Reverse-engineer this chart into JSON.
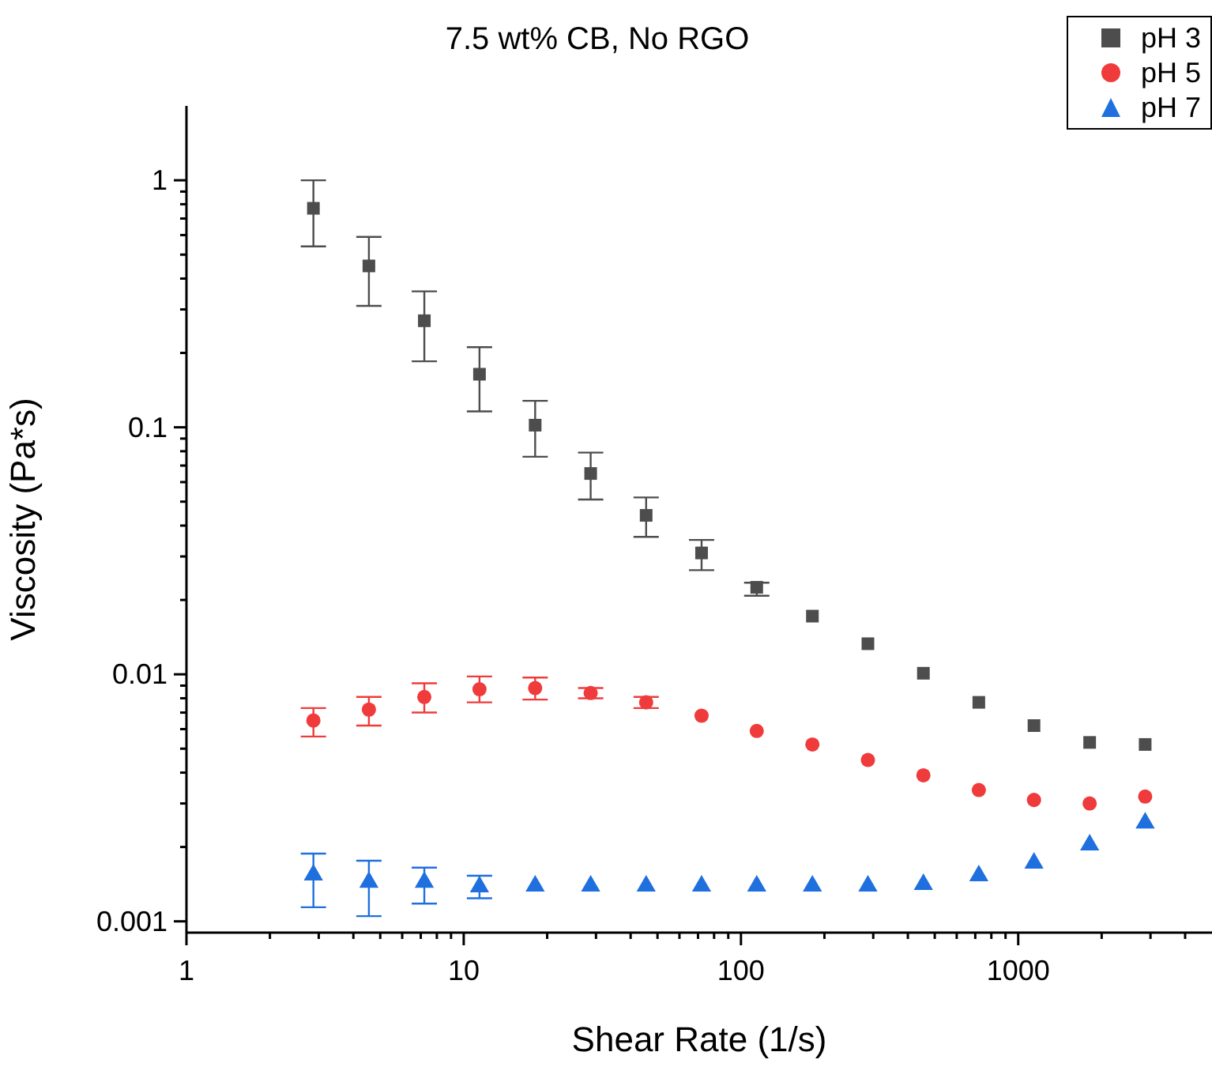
{
  "chart_data": {
    "type": "scatter",
    "title": "7.5 wt% CB, No RGO",
    "xlabel": "Shear Rate (1/s)",
    "ylabel": "Viscosity (Pa*s)",
    "log": "xy",
    "grid": false,
    "legend": "top right",
    "xlim": [
      1,
      5000
    ],
    "ylim": [
      0.0009,
      2
    ],
    "xticks": [
      1,
      {
        "value": 2,
        "label": null
      },
      {
        "value": 3,
        "label": null
      },
      {
        "value": 4,
        "label": null
      },
      {
        "value": 5,
        "label": null
      },
      {
        "value": 6,
        "label": null
      },
      {
        "value": 7,
        "label": null
      },
      {
        "value": 8,
        "label": null
      },
      {
        "value": 9,
        "label": null
      },
      10,
      {
        "value": 20,
        "label": null
      },
      {
        "value": 30,
        "label": null
      },
      {
        "value": 40,
        "label": null
      },
      {
        "value": 50,
        "label": null
      },
      {
        "value": 60,
        "label": null
      },
      {
        "value": 70,
        "label": null
      },
      {
        "value": 80,
        "label": null
      },
      {
        "value": 90,
        "label": null
      },
      100,
      {
        "value": 200,
        "label": null
      },
      {
        "value": 300,
        "label": null
      },
      {
        "value": 400,
        "label": null
      },
      {
        "value": 500,
        "label": null
      },
      {
        "value": 600,
        "label": null
      },
      {
        "value": 700,
        "label": null
      },
      {
        "value": 800,
        "label": null
      },
      {
        "value": 900,
        "label": null
      },
      1000,
      {
        "value": 2000,
        "label": null
      },
      {
        "value": 3000,
        "label": null
      },
      {
        "value": 4000,
        "label": null
      }
    ],
    "yticks": [
      0.001,
      {
        "value": 0.002,
        "label": null
      },
      {
        "value": 0.003,
        "label": null
      },
      {
        "value": 0.004,
        "label": null
      },
      {
        "value": 0.005,
        "label": null
      },
      {
        "value": 0.006,
        "label": null
      },
      {
        "value": 0.007,
        "label": null
      },
      {
        "value": 0.008,
        "label": null
      },
      {
        "value": 0.009,
        "label": null
      },
      0.01,
      {
        "value": 0.02,
        "label": null
      },
      {
        "value": 0.03,
        "label": null
      },
      {
        "value": 0.04,
        "label": null
      },
      {
        "value": 0.05,
        "label": null
      },
      {
        "value": 0.06,
        "label": null
      },
      {
        "value": 0.07,
        "label": null
      },
      {
        "value": 0.08,
        "label": null
      },
      {
        "value": 0.09,
        "label": null
      },
      0.1,
      {
        "value": 0.2,
        "label": null
      },
      {
        "value": 0.3,
        "label": null
      },
      {
        "value": 0.4,
        "label": null
      },
      {
        "value": 0.5,
        "label": null
      },
      {
        "value": 0.6,
        "label": null
      },
      {
        "value": 0.7,
        "label": null
      },
      {
        "value": 0.8,
        "label": null
      },
      {
        "value": 0.9,
        "label": null
      },
      1
    ],
    "x": [
      2.87,
      4.55,
      7.21,
      11.4,
      18.1,
      28.7,
      45.5,
      72.1,
      114,
      181,
      287,
      455,
      721,
      1140,
      1810,
      2870
    ],
    "series": [
      {
        "name": "pH 3",
        "color": "#4d4d4d",
        "marker": "square",
        "values": [
          0.77,
          0.45,
          0.27,
          0.164,
          0.102,
          0.065,
          0.044,
          0.031,
          0.0225,
          0.0172,
          0.0133,
          0.0101,
          0.0077,
          0.0062,
          0.0053,
          0.0052
        ],
        "errors": [
          [
            0.54,
            1.0
          ],
          [
            0.31,
            0.59
          ],
          [
            0.185,
            0.355
          ],
          [
            0.116,
            0.211
          ],
          [
            0.076,
            0.128
          ],
          [
            0.051,
            0.079
          ],
          [
            0.036,
            0.052
          ],
          [
            0.0264,
            0.035
          ],
          [
            0.0208,
            0.0235
          ],
          null,
          null,
          null,
          null,
          null,
          null,
          null
        ]
      },
      {
        "name": "pH 5",
        "color": "#ef3b3b",
        "marker": "circle",
        "values": [
          0.0065,
          0.0072,
          0.0081,
          0.0087,
          0.0088,
          0.0084,
          0.0077,
          0.0068,
          0.0059,
          0.0052,
          0.0045,
          0.0039,
          0.0034,
          0.0031,
          0.003,
          0.0032
        ],
        "errors": [
          [
            0.0056,
            0.0073
          ],
          [
            0.0062,
            0.0081
          ],
          [
            0.007,
            0.0092
          ],
          [
            0.0077,
            0.0098
          ],
          [
            0.0079,
            0.0097
          ],
          [
            0.008,
            0.0088
          ],
          [
            0.0073,
            0.0081
          ],
          null,
          null,
          null,
          null,
          null,
          null,
          null,
          null,
          null
        ]
      },
      {
        "name": "pH 7",
        "color": "#1f6fdf",
        "marker": "triangle",
        "values": [
          0.00154,
          0.00144,
          0.00144,
          0.00138,
          0.00139,
          0.00139,
          0.00139,
          0.00139,
          0.00139,
          0.00139,
          0.00139,
          0.00141,
          0.00153,
          0.00172,
          0.00204,
          0.0025
        ],
        "errors": [
          [
            0.00114,
            0.00188
          ],
          [
            0.00105,
            0.00176
          ],
          [
            0.00118,
            0.00165
          ],
          [
            0.00124,
            0.00153
          ],
          null,
          null,
          null,
          null,
          null,
          null,
          null,
          null,
          null,
          null,
          null,
          null
        ]
      }
    ]
  }
}
